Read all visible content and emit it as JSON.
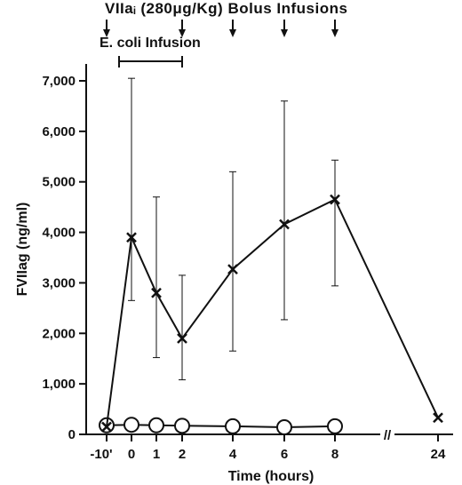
{
  "chart_data": {
    "type": "line",
    "top_annotation": "VIIaᵢ (280μg/Kg) Bolus Infusions",
    "infusion_annotation": "E. coli Infusion",
    "xlabel": "Time (hours)",
    "ylabel": "FVIIag (ng/ml)",
    "ylim": [
      0,
      7500
    ],
    "y_ticks": [
      0,
      1000,
      2000,
      3000,
      4000,
      5000,
      6000,
      7000
    ],
    "y_tick_labels": [
      "0",
      "1,000",
      "2,000",
      "3,000",
      "4,000",
      "5,000",
      "6,000",
      "7,000"
    ],
    "x_ticks": [
      "-10'",
      "0",
      "1",
      "2",
      "4",
      "6",
      "8",
      "24"
    ],
    "x_break_symbol": "//",
    "bolus_infusion_times": [
      "-10'",
      "2",
      "4",
      "6",
      "8"
    ],
    "ecoli_infusion_interval": [
      "0",
      "2"
    ],
    "series": [
      {
        "marker": "x",
        "x": [
          "-10'",
          "0",
          "1",
          "2",
          "4",
          "6",
          "8",
          "24"
        ],
        "values": [
          150,
          3900,
          2800,
          1900,
          3270,
          4160,
          4650,
          330
        ],
        "error_high": [
          null,
          7050,
          4700,
          3150,
          5200,
          6600,
          5430,
          null
        ],
        "error_low": [
          null,
          2650,
          1520,
          1080,
          1650,
          2270,
          2940,
          null
        ]
      },
      {
        "marker": "o",
        "x": [
          "-10'",
          "0",
          "1",
          "2",
          "4",
          "6",
          "8"
        ],
        "values": [
          180,
          190,
          180,
          170,
          160,
          140,
          160
        ]
      }
    ],
    "grid": false,
    "legend": "none"
  }
}
